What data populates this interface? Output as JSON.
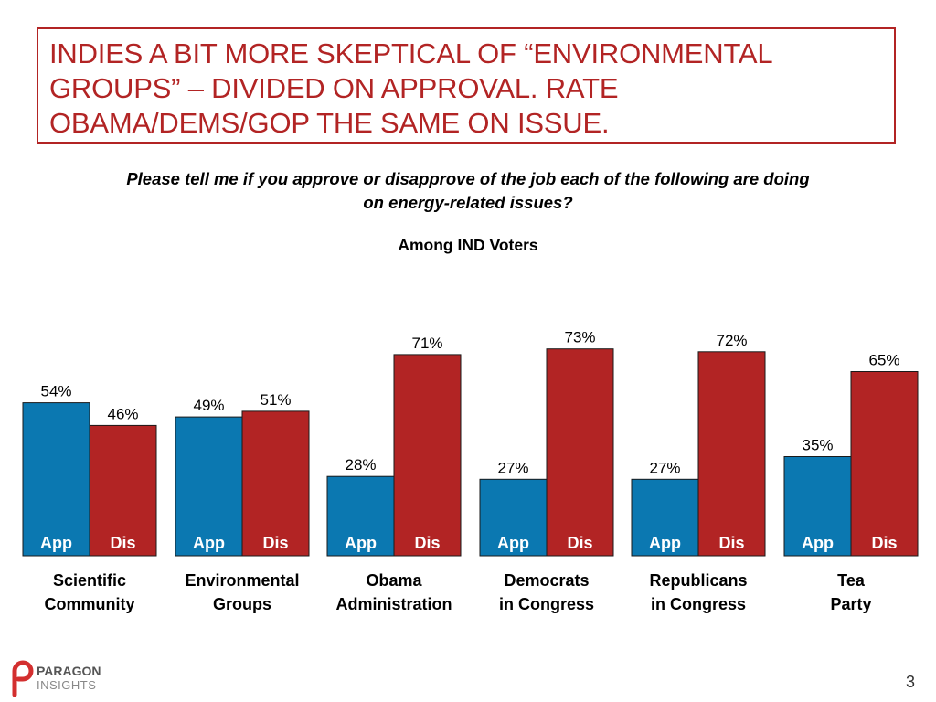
{
  "title": {
    "lines": [
      "INDIES A BIT MORE SKEPTICAL OF “ENVIRONMENTAL",
      "GROUPS” – DIVIDED ON APPROVAL. RATE",
      "OBAMA/DEMS/GOP THE SAME ON ISSUE."
    ]
  },
  "question": {
    "lines": [
      "Please tell me if you approve or disapprove of the job each of the following are doing",
      "on energy-related issues?"
    ]
  },
  "subtitle": "Among IND Voters",
  "colors": {
    "app": "#0b78b1",
    "dis": "#b22424",
    "title": "#b22424"
  },
  "chart_data": {
    "type": "bar",
    "categories": [
      [
        "Scientific",
        "Community"
      ],
      [
        "Environmental",
        "Groups"
      ],
      [
        "Obama",
        "Administration"
      ],
      [
        "Democrats",
        "in Congress"
      ],
      [
        "Republicans",
        "in Congress"
      ],
      [
        "Tea",
        "Party"
      ]
    ],
    "series": [
      {
        "name": "App",
        "values": [
          54,
          49,
          28,
          27,
          27,
          35
        ]
      },
      {
        "name": "Dis",
        "values": [
          46,
          51,
          71,
          73,
          72,
          65
        ]
      }
    ],
    "value_suffix": "%",
    "ylim": [
      0,
      100
    ],
    "grid": false
  },
  "footer": {
    "brand_top": "PARAGON",
    "brand_bottom": "INSIGHTS",
    "page_number": "3"
  }
}
